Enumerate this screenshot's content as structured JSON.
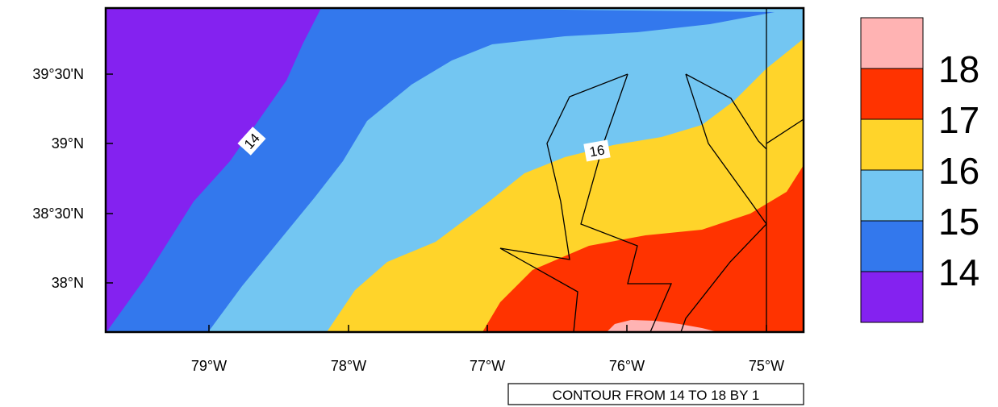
{
  "map": {
    "lat_labels": [
      "39°30'N",
      "39°N",
      "38°30'N",
      "38°N"
    ],
    "lon_labels": [
      "79°W",
      "78°W",
      "77°W",
      "76°W",
      "75°W"
    ],
    "contour_labels": [
      "14",
      "16"
    ],
    "info_label": "CONTOUR FROM 14 TO 18 BY 1"
  },
  "legend": {
    "levels": [
      "18",
      "17",
      "16",
      "15",
      "14"
    ],
    "colors": [
      "#ffb3b3",
      "#ff3300",
      "#ffd42a",
      "#73c6f2",
      "#3378ed",
      "#8422f0"
    ]
  }
}
